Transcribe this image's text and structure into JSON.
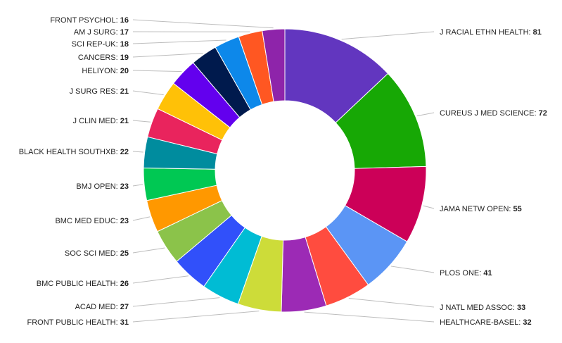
{
  "chart_data": {
    "type": "pie",
    "donut": true,
    "title": "",
    "categories": [
      "J RACIAL ETHN HEALTH",
      "CUREUS J MED SCIENCE",
      "JAMA NETW OPEN",
      "PLOS ONE",
      "J NATL MED ASSOC",
      "HEALTHCARE-BASEL",
      "FRONT PUBLIC HEALTH",
      "ACAD MED",
      "BMC PUBLIC HEALTH",
      "SOC SCI MED",
      "BMC MED EDUC",
      "BMJ OPEN",
      "BLACK HEALTH SOUTHXB",
      "J CLIN MED",
      "J SURG RES",
      "HELIYON",
      "CANCERS",
      "SCI REP-UK",
      "AM J SURG",
      "FRONT PSYCHOL"
    ],
    "values": [
      81,
      72,
      55,
      41,
      33,
      32,
      31,
      27,
      26,
      25,
      23,
      23,
      22,
      21,
      21,
      20,
      19,
      18,
      17,
      16
    ],
    "colors": [
      "#6236bf",
      "#17a805",
      "#cc0058",
      "#5b95f5",
      "#ff4c3f",
      "#9c2ab5",
      "#cddc39",
      "#00bcd4",
      "#3150fa",
      "#8bc34a",
      "#ff9800",
      "#00c853",
      "#008c9e",
      "#e9245d",
      "#ffc107",
      "#6300ee",
      "#001a4d",
      "#0d88ea",
      "#ff5722",
      "#8e24aa"
    ]
  }
}
